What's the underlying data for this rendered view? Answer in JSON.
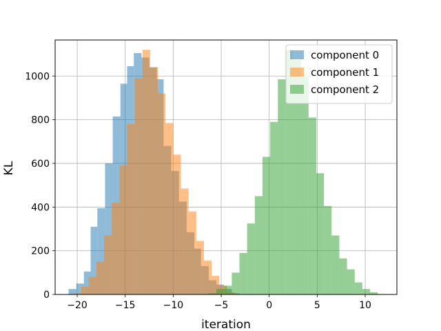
{
  "chart_data": {
    "type": "histogram",
    "title": "",
    "xlabel": "iteration",
    "ylabel": "KL",
    "xlim": [
      -22.3,
      13.3
    ],
    "ylim": [
      0,
      1165
    ],
    "xticks": [
      -20,
      -15,
      -10,
      -5,
      0,
      5,
      10
    ],
    "xtick_labels": [
      "−20",
      "−15",
      "−10",
      "−5",
      "0",
      "5",
      "10"
    ],
    "yticks": [
      0,
      200,
      400,
      600,
      800,
      1000
    ],
    "ytick_labels": [
      "0",
      "200",
      "400",
      "600",
      "800",
      "1000"
    ],
    "grid": true,
    "legend_position": "top-right",
    "series": [
      {
        "name": "component 0",
        "color": "#1f77b4",
        "opacity": 0.5,
        "bins": [
          [
            -20.9,
            -20.1,
            25
          ],
          [
            -20.1,
            -19.3,
            50
          ],
          [
            -19.3,
            -18.6,
            105
          ],
          [
            -18.6,
            -17.9,
            310
          ],
          [
            -17.9,
            -17.1,
            395
          ],
          [
            -17.1,
            -16.3,
            600
          ],
          [
            -16.3,
            -15.5,
            815
          ],
          [
            -15.5,
            -14.8,
            965
          ],
          [
            -14.8,
            -14.1,
            1045
          ],
          [
            -14.1,
            -13.3,
            1105
          ],
          [
            -13.3,
            -12.5,
            1085
          ],
          [
            -12.5,
            -11.7,
            1040
          ],
          [
            -11.7,
            -11.0,
            985
          ],
          [
            -11.0,
            -10.2,
            680
          ],
          [
            -10.2,
            -9.4,
            565
          ],
          [
            -9.4,
            -8.6,
            425
          ],
          [
            -8.6,
            -7.8,
            285
          ],
          [
            -7.8,
            -7.1,
            210
          ],
          [
            -7.1,
            -6.3,
            130
          ],
          [
            -6.3,
            -5.5,
            65
          ],
          [
            -5.5,
            -4.7,
            45
          ],
          [
            -4.7,
            -3.9,
            25
          ],
          [
            -3.9,
            -3.1,
            5
          ]
        ]
      },
      {
        "name": "component 1",
        "color": "#ff7f0e",
        "opacity": 0.5,
        "bins": [
          [
            -20.4,
            -19.6,
            5
          ],
          [
            -19.6,
            -18.8,
            35
          ],
          [
            -18.8,
            -18.0,
            80
          ],
          [
            -18.0,
            -17.2,
            150
          ],
          [
            -17.2,
            -16.4,
            270
          ],
          [
            -16.4,
            -15.6,
            420
          ],
          [
            -15.6,
            -14.8,
            590
          ],
          [
            -14.8,
            -14.0,
            780
          ],
          [
            -14.0,
            -13.2,
            990
          ],
          [
            -13.2,
            -12.4,
            1120
          ],
          [
            -12.4,
            -11.6,
            1040
          ],
          [
            -11.6,
            -10.8,
            920
          ],
          [
            -10.8,
            -10.0,
            785
          ],
          [
            -10.0,
            -9.2,
            640
          ],
          [
            -9.2,
            -8.4,
            485
          ],
          [
            -8.4,
            -7.6,
            380
          ],
          [
            -7.6,
            -6.8,
            245
          ],
          [
            -6.8,
            -6.0,
            155
          ],
          [
            -6.0,
            -5.2,
            85
          ],
          [
            -5.2,
            -4.4,
            40
          ],
          [
            -4.4,
            -3.6,
            10
          ]
        ]
      },
      {
        "name": "component 2",
        "color": "#2ca02c",
        "opacity": 0.5,
        "bins": [
          [
            -6.3,
            -5.5,
            5
          ],
          [
            -5.5,
            -4.7,
            25
          ],
          [
            -4.7,
            -3.9,
            40
          ],
          [
            -3.9,
            -3.1,
            100
          ],
          [
            -3.1,
            -2.3,
            190
          ],
          [
            -2.3,
            -1.5,
            325
          ],
          [
            -1.5,
            -0.7,
            450
          ],
          [
            -0.7,
            0.1,
            630
          ],
          [
            0.1,
            0.9,
            790
          ],
          [
            0.9,
            1.7,
            985
          ],
          [
            1.7,
            2.5,
            1120
          ],
          [
            2.5,
            3.3,
            1075
          ],
          [
            3.3,
            4.1,
            995
          ],
          [
            4.1,
            4.9,
            810
          ],
          [
            4.9,
            5.7,
            555
          ],
          [
            5.7,
            6.5,
            405
          ],
          [
            6.5,
            7.3,
            270
          ],
          [
            7.3,
            8.1,
            165
          ],
          [
            8.1,
            8.9,
            115
          ],
          [
            8.9,
            9.7,
            55
          ],
          [
            9.7,
            10.5,
            25
          ],
          [
            10.5,
            11.3,
            10
          ],
          [
            11.3,
            12.1,
            2
          ]
        ]
      }
    ]
  }
}
